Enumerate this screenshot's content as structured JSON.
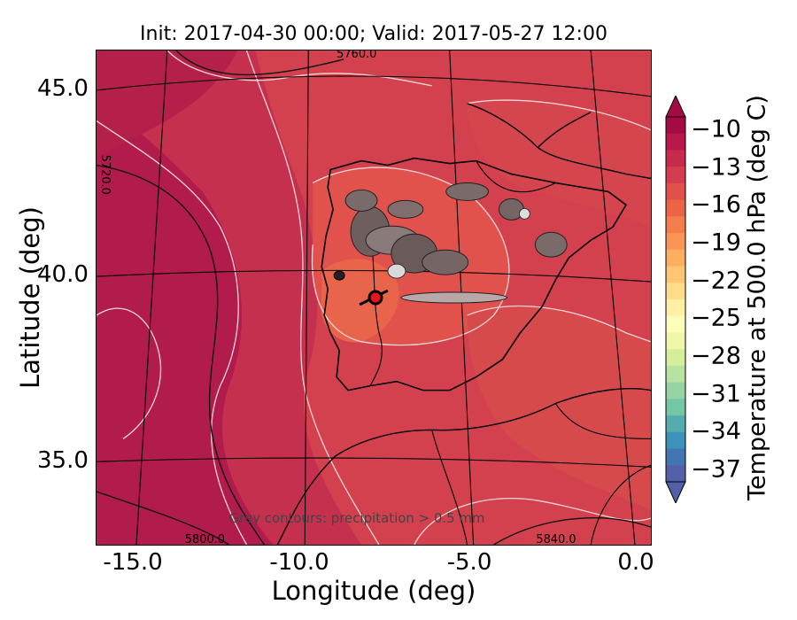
{
  "title": "Init: 2017-04-30 00:00; Valid: 2017-05-27 12:00",
  "xlabel": "Longitude (deg)",
  "ylabel": "Latitude (deg)",
  "x_ticks": [
    "-15.0",
    "-10.0",
    "-5.0",
    "0.0"
  ],
  "y_ticks": [
    "45.0",
    "40.0",
    "35.0"
  ],
  "colorbar": {
    "label": "Temperature at 500.0 hPa (deg C)",
    "ticks": [
      "−10",
      "−13",
      "−16",
      "−19",
      "−22",
      "−25",
      "−28",
      "−31",
      "−34",
      "−37"
    ],
    "range": [
      -38,
      -9
    ],
    "colors_top_to_bottom": [
      "#a50a45",
      "#b8194a",
      "#c62a4c",
      "#d43d4f",
      "#e0514b",
      "#ec6446",
      "#f47d4c",
      "#f99655",
      "#fdae61",
      "#fec574",
      "#fedc8a",
      "#fff0a6",
      "#fcfdbb",
      "#eef8a8",
      "#d6ee9b",
      "#b8e2a1",
      "#96d4a4",
      "#73c7a4",
      "#54ac ae",
      "#3c92b8",
      "#4276b2",
      "#5360a7"
    ]
  },
  "contour_labels": {
    "top": "5760.0",
    "left": "5720.0",
    "bottom_left": "5800.0",
    "bottom_right": "5840.0"
  },
  "annotation": "Grey contours: precipitation > 0.5 mm",
  "map": {
    "background": "#c52d4e",
    "fill_colors": [
      "#b81e4d",
      "#cc3a4d",
      "#d9484c",
      "#e2584a",
      "#ea6848"
    ],
    "marker_color": "#e8141c"
  }
}
